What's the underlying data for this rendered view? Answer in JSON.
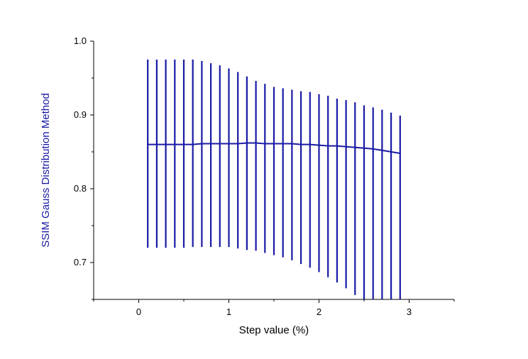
{
  "chart_data": {
    "type": "line",
    "title": "",
    "xlabel": "Step value (%)",
    "ylabel": "SSIM Gauss Distribution Method",
    "xlim": [
      -0.5,
      3.5
    ],
    "ylim": [
      0.65,
      1.0
    ],
    "xticks": [
      0,
      1,
      2,
      3
    ],
    "xtick_labels": [
      "0",
      "1",
      "2",
      "3"
    ],
    "yticks": [
      0.7,
      0.8,
      0.9,
      1.0
    ],
    "ytick_labels": [
      "0.7",
      "0.8",
      "0.9",
      "1.0"
    ],
    "grid": false,
    "legend": "none",
    "series": [
      {
        "color": "#1a1aa6",
        "x": [
          0.1,
          0.2,
          0.3,
          0.4,
          0.5,
          0.6,
          0.7,
          0.8,
          0.9,
          1.0,
          1.1,
          1.2,
          1.3,
          1.4,
          1.5,
          1.6,
          1.7,
          1.8,
          1.9,
          2.0,
          2.1,
          2.2,
          2.3,
          2.4,
          2.5,
          2.6,
          2.7,
          2.8,
          2.9
        ],
        "y": [
          0.86,
          0.86,
          0.86,
          0.86,
          0.86,
          0.86,
          0.861,
          0.861,
          0.861,
          0.861,
          0.861,
          0.862,
          0.862,
          0.861,
          0.861,
          0.861,
          0.861,
          0.86,
          0.86,
          0.859,
          0.858,
          0.858,
          0.857,
          0.856,
          0.855,
          0.854,
          0.852,
          0.85,
          0.848
        ],
        "y_upper": [
          0.975,
          0.975,
          0.975,
          0.975,
          0.975,
          0.975,
          0.973,
          0.97,
          0.967,
          0.963,
          0.958,
          0.952,
          0.946,
          0.942,
          0.938,
          0.936,
          0.934,
          0.932,
          0.931,
          0.928,
          0.926,
          0.922,
          0.92,
          0.917,
          0.913,
          0.91,
          0.907,
          0.903,
          0.899
        ],
        "y_lower": [
          0.72,
          0.72,
          0.72,
          0.72,
          0.72,
          0.721,
          0.721,
          0.721,
          0.721,
          0.721,
          0.719,
          0.717,
          0.716,
          0.713,
          0.71,
          0.707,
          0.703,
          0.698,
          0.693,
          0.687,
          0.68,
          0.673,
          0.665,
          0.656,
          0.65,
          0.65,
          0.65,
          0.65,
          0.65
        ]
      }
    ]
  }
}
